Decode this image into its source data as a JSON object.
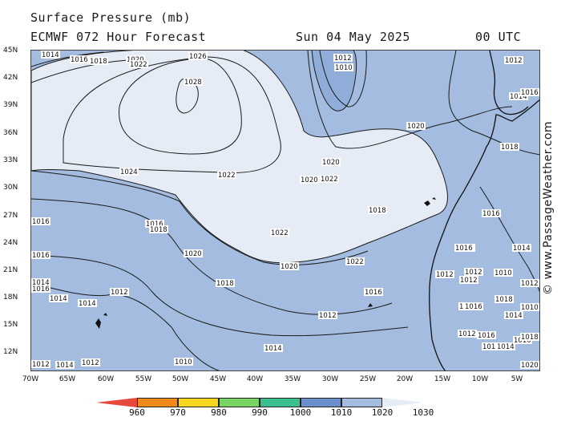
{
  "header": {
    "title": "Surface Pressure (mb)",
    "model": "ECMWF 072 Hour Forecast",
    "date": "Sun 04 May 2025",
    "time": "00 UTC"
  },
  "watermark": "© www.PassageWeather.com",
  "lat_labels": [
    "45N",
    "42N",
    "39N",
    "36N",
    "33N",
    "30N",
    "27N",
    "24N",
    "21N",
    "18N",
    "15N",
    "12N"
  ],
  "lon_labels": [
    "70W",
    "65W",
    "60W",
    "55W",
    "50W",
    "45W",
    "40W",
    "35W",
    "30W",
    "25W",
    "20W",
    "15W",
    "10W",
    "5W"
  ],
  "colorbar": {
    "labels": [
      "960",
      "970",
      "980",
      "990",
      "1000",
      "1010",
      "1020",
      "1030"
    ],
    "colors": [
      "#e8473c",
      "#f18a1c",
      "#f7d81e",
      "#7ad463",
      "#3cbf8f",
      "#6a8fcc",
      "#a3bcdf",
      "#e6ecf6"
    ]
  },
  "colors": {
    "ocean_low": "#a3bcdf",
    "ocean_high": "#e6ecf6",
    "ocean_mid": "#8fadd8",
    "land": "#a3bcdf"
  },
  "isobar_labels": [
    "1014",
    "1016",
    "1018",
    "1020",
    "1022",
    "1026",
    "1028",
    "1012",
    "1010",
    "1012",
    "1014",
    "1016",
    "1020",
    "1018",
    "1020",
    "1022",
    "1024",
    "1022",
    "1020",
    "1018",
    "1016",
    "1016",
    "1018",
    "1016",
    "1020",
    "1022",
    "1020",
    "1022",
    "1018",
    "1016",
    "1018",
    "1016",
    "1016",
    "1014",
    "1016",
    "1014",
    "1014",
    "1012",
    "1014",
    "1012",
    "1012",
    "1012",
    "1010",
    "1012",
    "1014",
    "1018",
    "1016",
    "1014",
    "1012",
    "1010",
    "1012",
    "1016",
    "1012",
    "1014",
    "1016",
    "1018",
    "1020",
    "1012",
    "1014",
    "1012",
    "1010",
    "1014",
    "1012"
  ]
}
